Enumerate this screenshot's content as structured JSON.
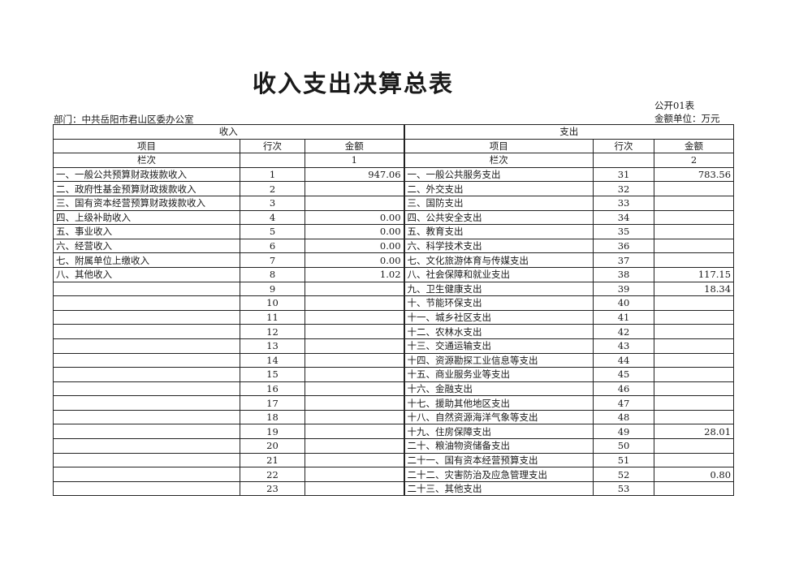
{
  "title": "收入支出决算总表",
  "department": "部门：中共岳阳市君山区委办公室",
  "form_no": "公开01表",
  "unit": "金额单位：万元",
  "income": {
    "section": "收入",
    "col_item": "项目",
    "col_row": "行次",
    "col_amount": "金额",
    "lanci_label": "栏次",
    "lanci_value": "1"
  },
  "expense": {
    "section": "支出",
    "col_item": "项目",
    "col_row": "行次",
    "col_amount": "金额",
    "lanci_label": "栏次",
    "lanci_value": "2"
  },
  "rows": [
    {
      "in_item": "一、一般公共预算财政拨款收入",
      "in_no": "1",
      "in_amt": "947.06",
      "ex_item": "一、一般公共服务支出",
      "ex_no": "31",
      "ex_amt": "783.56"
    },
    {
      "in_item": "二、政府性基金预算财政拨款收入",
      "in_no": "2",
      "in_amt": "",
      "ex_item": "二、外交支出",
      "ex_no": "32",
      "ex_amt": ""
    },
    {
      "in_item": "三、国有资本经营预算财政拨款收入",
      "in_no": "3",
      "in_amt": "",
      "ex_item": "三、国防支出",
      "ex_no": "33",
      "ex_amt": ""
    },
    {
      "in_item": "四、上级补助收入",
      "in_no": "4",
      "in_amt": "0.00",
      "ex_item": "四、公共安全支出",
      "ex_no": "34",
      "ex_amt": ""
    },
    {
      "in_item": "五、事业收入",
      "in_no": "5",
      "in_amt": "0.00",
      "ex_item": "五、教育支出",
      "ex_no": "35",
      "ex_amt": ""
    },
    {
      "in_item": "六、经营收入",
      "in_no": "6",
      "in_amt": "0.00",
      "ex_item": "六、科学技术支出",
      "ex_no": "36",
      "ex_amt": ""
    },
    {
      "in_item": "七、附属单位上缴收入",
      "in_no": "7",
      "in_amt": "0.00",
      "ex_item": "七、文化旅游体育与传媒支出",
      "ex_no": "37",
      "ex_amt": ""
    },
    {
      "in_item": "八、其他收入",
      "in_no": "8",
      "in_amt": "1.02",
      "ex_item": "八、社会保障和就业支出",
      "ex_no": "38",
      "ex_amt": "117.15"
    },
    {
      "in_item": "",
      "in_no": "9",
      "in_amt": "",
      "ex_item": "九、卫生健康支出",
      "ex_no": "39",
      "ex_amt": "18.34"
    },
    {
      "in_item": "",
      "in_no": "10",
      "in_amt": "",
      "ex_item": "十、节能环保支出",
      "ex_no": "40",
      "ex_amt": ""
    },
    {
      "in_item": "",
      "in_no": "11",
      "in_amt": "",
      "ex_item": "十一、城乡社区支出",
      "ex_no": "41",
      "ex_amt": ""
    },
    {
      "in_item": "",
      "in_no": "12",
      "in_amt": "",
      "ex_item": "十二、农林水支出",
      "ex_no": "42",
      "ex_amt": ""
    },
    {
      "in_item": "",
      "in_no": "13",
      "in_amt": "",
      "ex_item": "十三、交通运输支出",
      "ex_no": "43",
      "ex_amt": ""
    },
    {
      "in_item": "",
      "in_no": "14",
      "in_amt": "",
      "ex_item": "十四、资源勘探工业信息等支出",
      "ex_no": "44",
      "ex_amt": ""
    },
    {
      "in_item": "",
      "in_no": "15",
      "in_amt": "",
      "ex_item": "十五、商业服务业等支出",
      "ex_no": "45",
      "ex_amt": ""
    },
    {
      "in_item": "",
      "in_no": "16",
      "in_amt": "",
      "ex_item": "十六、金融支出",
      "ex_no": "46",
      "ex_amt": ""
    },
    {
      "in_item": "",
      "in_no": "17",
      "in_amt": "",
      "ex_item": "十七、援助其他地区支出",
      "ex_no": "47",
      "ex_amt": ""
    },
    {
      "in_item": "",
      "in_no": "18",
      "in_amt": "",
      "ex_item": "十八、自然资源海洋气象等支出",
      "ex_no": "48",
      "ex_amt": ""
    },
    {
      "in_item": "",
      "in_no": "19",
      "in_amt": "",
      "ex_item": "十九、住房保障支出",
      "ex_no": "49",
      "ex_amt": "28.01"
    },
    {
      "in_item": "",
      "in_no": "20",
      "in_amt": "",
      "ex_item": "二十、粮油物资储备支出",
      "ex_no": "50",
      "ex_amt": ""
    },
    {
      "in_item": "",
      "in_no": "21",
      "in_amt": "",
      "ex_item": "二十一、国有资本经营预算支出",
      "ex_no": "51",
      "ex_amt": ""
    },
    {
      "in_item": "",
      "in_no": "22",
      "in_amt": "",
      "ex_item": "二十二、灾害防治及应急管理支出",
      "ex_no": "52",
      "ex_amt": "0.80"
    },
    {
      "in_item": "",
      "in_no": "23",
      "in_amt": "",
      "ex_item": "二十三、其他支出",
      "ex_no": "53",
      "ex_amt": ""
    }
  ]
}
